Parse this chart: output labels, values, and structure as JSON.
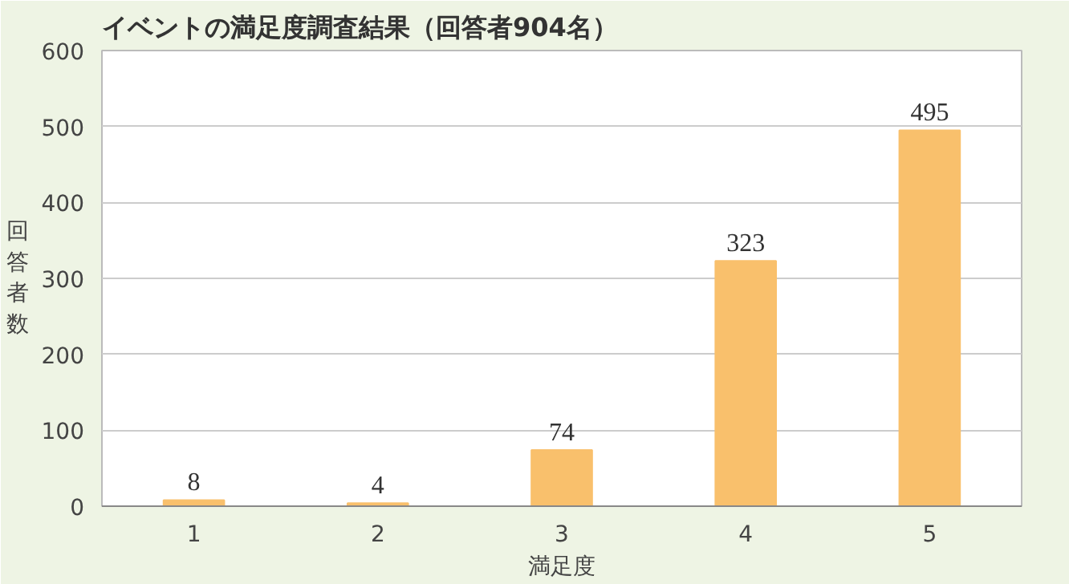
{
  "chart_data": {
    "type": "bar",
    "title": "イベントの満足度調査結果（回答者904名）",
    "xlabel": "満足度",
    "ylabel": "回答者数",
    "categories": [
      "1",
      "2",
      "3",
      "4",
      "5"
    ],
    "values": [
      8,
      4,
      74,
      323,
      495
    ],
    "color": "#f9c06c",
    "ylim": [
      0,
      600
    ],
    "yticks": [
      0,
      100,
      200,
      300,
      400,
      500,
      600
    ],
    "grid": "y",
    "data_labels": true
  }
}
